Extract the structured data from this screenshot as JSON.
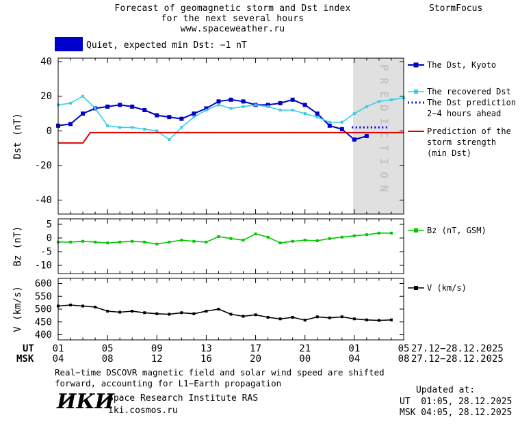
{
  "header": {
    "title1": "Forecast of geomagnetic storm and Dst index",
    "title2": "for the next several hours",
    "title3": "www.spaceweather.ru",
    "brand": "StormFocus"
  },
  "status": {
    "text": "Quiet, expected min Dst: −1 nT",
    "swatch_color": "#0000CC"
  },
  "colors": {
    "zone_bg": "#E0E0E0",
    "zone_text": "#C4C4C4",
    "axis": "#000000"
  },
  "chart_data": [
    {
      "type": "line",
      "name": "dst",
      "ylabel": "Dst (nT)",
      "ylim": [
        -48,
        42
      ],
      "yticks": [
        40,
        20,
        0,
        -20,
        -40
      ],
      "ytick_labels": [
        "40",
        "20",
        "0",
        "-20",
        "-40"
      ],
      "xlim": [
        1,
        29
      ],
      "grid": false,
      "prediction_zone": {
        "from": 24.9,
        "to": 29,
        "label": "PREDICTION"
      },
      "series": [
        {
          "key": "dst-kyoto",
          "name": "The Dst, Kyoto",
          "color": "#0000C8",
          "width": 2,
          "marker": "square",
          "marker_size": 6,
          "x": [
            1,
            2,
            3,
            4,
            5,
            6,
            7,
            8,
            9,
            10,
            11,
            12,
            13,
            14,
            15,
            16,
            17,
            18,
            19,
            20,
            21,
            22,
            23,
            24,
            25,
            26
          ],
          "y": [
            3,
            4,
            10,
            13,
            14,
            15,
            14,
            12,
            9,
            8,
            7,
            10,
            13,
            17,
            18,
            17,
            15,
            15,
            16,
            18,
            15,
            10,
            3,
            1,
            -5,
            -3
          ]
        },
        {
          "key": "recovered-dst",
          "name": "The recovered Dst",
          "color": "#35CDE8",
          "width": 1.6,
          "marker": "square",
          "marker_size": 4,
          "x": [
            1,
            2,
            3,
            4,
            5,
            6,
            7,
            8,
            9,
            10,
            11,
            12,
            13,
            14,
            15,
            16,
            17,
            18,
            19,
            20,
            21,
            22,
            23,
            24,
            25,
            26,
            27,
            28,
            29
          ],
          "y": [
            15,
            16,
            20,
            13,
            3,
            2,
            2,
            1,
            0,
            -5,
            2,
            8,
            12,
            15,
            13,
            14,
            15,
            14,
            12,
            12,
            10,
            8,
            5,
            5,
            10,
            14,
            17,
            18,
            19
          ]
        },
        {
          "key": "dst-prediction",
          "name": "The Dst prediction 2−4 hours ahead",
          "color": "#0000E0",
          "width": 3,
          "style": "dotted",
          "x": [
            24.8,
            25.6,
            26.4,
            27.2,
            27.8
          ],
          "y": [
            2,
            2,
            2,
            2,
            2
          ]
        },
        {
          "key": "storm-prediction",
          "name": "Prediction of the storm strength (min Dst)",
          "color": "#DC0000",
          "width": 2,
          "x": [
            1,
            3,
            3.6,
            29
          ],
          "y": [
            -7,
            -7,
            -1,
            -1
          ]
        }
      ]
    },
    {
      "type": "line",
      "name": "bz",
      "ylabel": "Bz (nT)",
      "ylim": [
        -13,
        7
      ],
      "yticks": [
        5,
        0,
        -5,
        -10
      ],
      "ytick_labels": [
        "5",
        "0",
        "-5",
        "-10"
      ],
      "xlim": [
        1,
        29
      ],
      "grid": false,
      "series": [
        {
          "key": "bz-gsm",
          "name": "Bz (nT, GSM)",
          "color": "#00C800",
          "width": 1.6,
          "marker": "square",
          "marker_size": 4,
          "x": [
            1,
            2,
            3,
            4,
            5,
            6,
            7,
            8,
            9,
            10,
            11,
            12,
            13,
            14,
            15,
            16,
            17,
            18,
            19,
            20,
            21,
            22,
            23,
            24,
            25,
            26,
            27,
            28
          ],
          "y": [
            -1.5,
            -1.5,
            -1.2,
            -1.5,
            -1.8,
            -1.5,
            -1.2,
            -1.5,
            -2.2,
            -1.5,
            -0.8,
            -1.2,
            -1.5,
            0.5,
            -0.2,
            -0.8,
            1.5,
            0.3,
            -1.8,
            -1.2,
            -0.8,
            -1,
            -0.2,
            0.3,
            0.8,
            1.2,
            1.8,
            1.8
          ]
        }
      ]
    },
    {
      "type": "line",
      "name": "v",
      "ylabel": "V (km/s)",
      "ylim": [
        380,
        620
      ],
      "yticks": [
        600,
        550,
        500,
        450,
        400
      ],
      "ytick_labels": [
        "600",
        "550",
        "500",
        "450",
        "400"
      ],
      "xlim": [
        1,
        29
      ],
      "grid": false,
      "series": [
        {
          "key": "v-wind",
          "name": "V (km/s)",
          "color": "#000000",
          "width": 1.6,
          "marker": "square",
          "marker_size": 4,
          "x": [
            1,
            2,
            3,
            4,
            5,
            6,
            7,
            8,
            9,
            10,
            11,
            12,
            13,
            14,
            15,
            16,
            17,
            18,
            19,
            20,
            21,
            22,
            23,
            24,
            25,
            26,
            27,
            28
          ],
          "y": [
            512,
            516,
            512,
            508,
            492,
            488,
            492,
            486,
            482,
            480,
            486,
            482,
            492,
            500,
            480,
            472,
            478,
            468,
            462,
            468,
            457,
            470,
            466,
            470,
            462,
            458,
            456,
            458
          ]
        }
      ]
    }
  ],
  "xaxis": {
    "ut_label": "UT",
    "msk_label": "MSK",
    "ticks": [
      1,
      5,
      9,
      13,
      17,
      21,
      25,
      29
    ],
    "ut_tick_labels": [
      "01",
      "05",
      "09",
      "13",
      "17",
      "21",
      "01",
      "05"
    ],
    "msk_tick_labels": [
      "04",
      "08",
      "12",
      "16",
      "20",
      "00",
      "04",
      "08"
    ],
    "date_label": "27.12−28.12.2025"
  },
  "legend": {
    "dst": {
      "kyoto": "The Dst, Kyoto",
      "recovered": "The recovered Dst",
      "prediction1": "The Dst prediction",
      "prediction2": "2−4 hours ahead",
      "storm1": "Prediction of the",
      "storm2": "storm strength",
      "storm3": "(min Dst)"
    },
    "bz": "Bz (nT, GSM)",
    "v": "V (km/s)"
  },
  "footer": {
    "note1": "Real−time DSCOVR magnetic field and solar wind speed are shifted",
    "note2": "forward, accounting for L1−Earth propagation",
    "updated_label": "Updated at:",
    "updated_ut": "UT  01:05, 28.12.2025",
    "updated_msk": "MSK 04:05, 28.12.2025",
    "logo": "ИКИ",
    "institute": "Space Research Institute RAS",
    "site": "iki.cosmos.ru"
  }
}
